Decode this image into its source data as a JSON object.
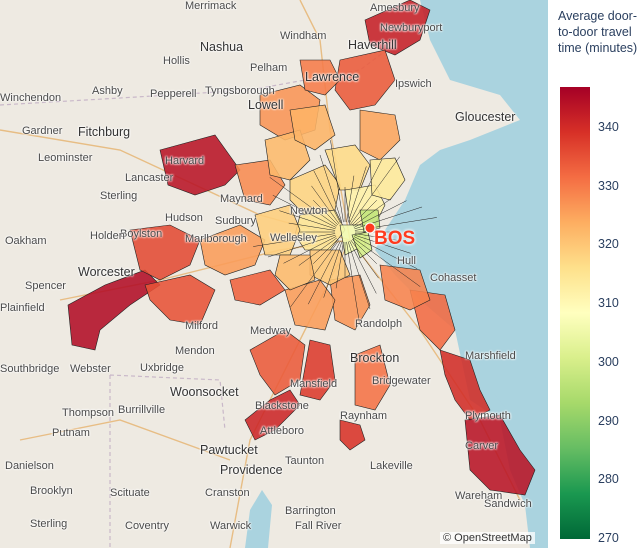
{
  "map": {
    "place_labels": [
      "Amesbury",
      "Merrimack",
      "Newburyport",
      "Nashua",
      "Haverhill",
      "Hollis",
      "Windham",
      "Pelham",
      "Lawrence",
      "Winchendon",
      "Ashby",
      "Pepperell",
      "Tyngsborough",
      "Lowell",
      "Ipswich",
      "Gloucester",
      "Gardner",
      "Fitchburg",
      "Leominster",
      "Harvard",
      "Lancaster",
      "Sterling",
      "Maynard",
      "Sudbury",
      "Hudson",
      "Boylston",
      "Holden",
      "Oakham",
      "Marlborough",
      "Worcester",
      "Spencer",
      "Medway",
      "Milford",
      "Mendon",
      "Southbridge",
      "Webster",
      "Uxbridge",
      "Woonsocket",
      "Burrillville",
      "Thompson",
      "Putnam",
      "Pawtucket",
      "Attleboro",
      "Providence",
      "Cranston",
      "Scituate",
      "Brooklyn",
      "Sterling",
      "Coventry",
      "Warwick",
      "Barrington",
      "Fall River",
      "Taunton",
      "Lakeville",
      "Brockton",
      "Bridgewater",
      "Plymouth",
      "Carver",
      "Wareham",
      "Hull",
      "Marshfield",
      "Raynham",
      "Mansfield",
      "Randolph",
      "Danielson",
      "Newton",
      "Wellesley",
      "Plainfield",
      "Sandwich",
      "Cohasset",
      "Blackstone"
    ],
    "attribution": "© OpenStreetMap",
    "airport": {
      "label": "BOS",
      "color": "#ff3b1f"
    }
  },
  "colorbar": {
    "title": "Average door-to-door travel time (minutes)",
    "min": 270,
    "max": 347,
    "ticks": [
      340,
      330,
      320,
      310,
      300,
      290,
      280,
      270
    ],
    "colorscale": [
      "#006837",
      "#1a9850",
      "#66bd63",
      "#a6d96a",
      "#d9ef8b",
      "#ffffbf",
      "#fee08b",
      "#fdae61",
      "#f46d43",
      "#d73027",
      "#a50026"
    ]
  },
  "colors": {
    "water": "#aad3df",
    "land": "#eeeae2",
    "border": "#222222"
  }
}
